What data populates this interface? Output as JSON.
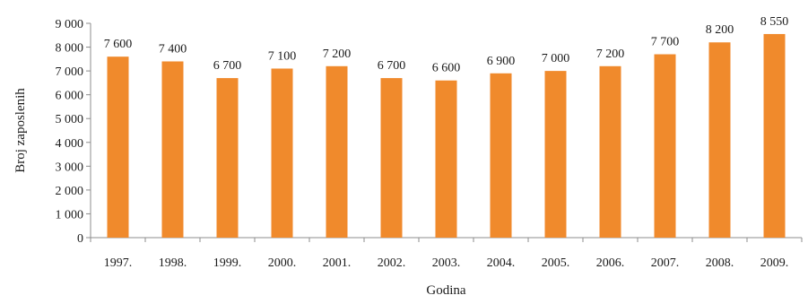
{
  "chart_data": {
    "type": "bar",
    "title": "",
    "xlabel": "Godina",
    "ylabel": "Broj zaposlenih",
    "categories": [
      "1997.",
      "1998.",
      "1999.",
      "2000.",
      "2001.",
      "2002.",
      "2003.",
      "2004.",
      "2005.",
      "2006.",
      "2007.",
      "2008.",
      "2009."
    ],
    "values": [
      7600,
      7400,
      6700,
      7100,
      7200,
      6700,
      6600,
      6900,
      7000,
      7200,
      7700,
      8200,
      8550
    ],
    "value_labels": [
      "7 600",
      "7 400",
      "6 700",
      "7 100",
      "7 200",
      "6 700",
      "6 600",
      "6 900",
      "7 000",
      "7 200",
      "7 700",
      "8 200",
      "8 550"
    ],
    "ylim": [
      0,
      9000
    ],
    "yticks": [
      0,
      1000,
      2000,
      3000,
      4000,
      5000,
      6000,
      7000,
      8000,
      9000
    ],
    "ytick_labels": [
      "0",
      "1 000",
      "2 000",
      "3 000",
      "4 000",
      "5 000",
      "6 000",
      "7 000",
      "8 000",
      "9 000"
    ],
    "grid": false,
    "legend": "none",
    "colors": {
      "bar": "#f08a2c",
      "axis": "#8c8c8c"
    }
  }
}
